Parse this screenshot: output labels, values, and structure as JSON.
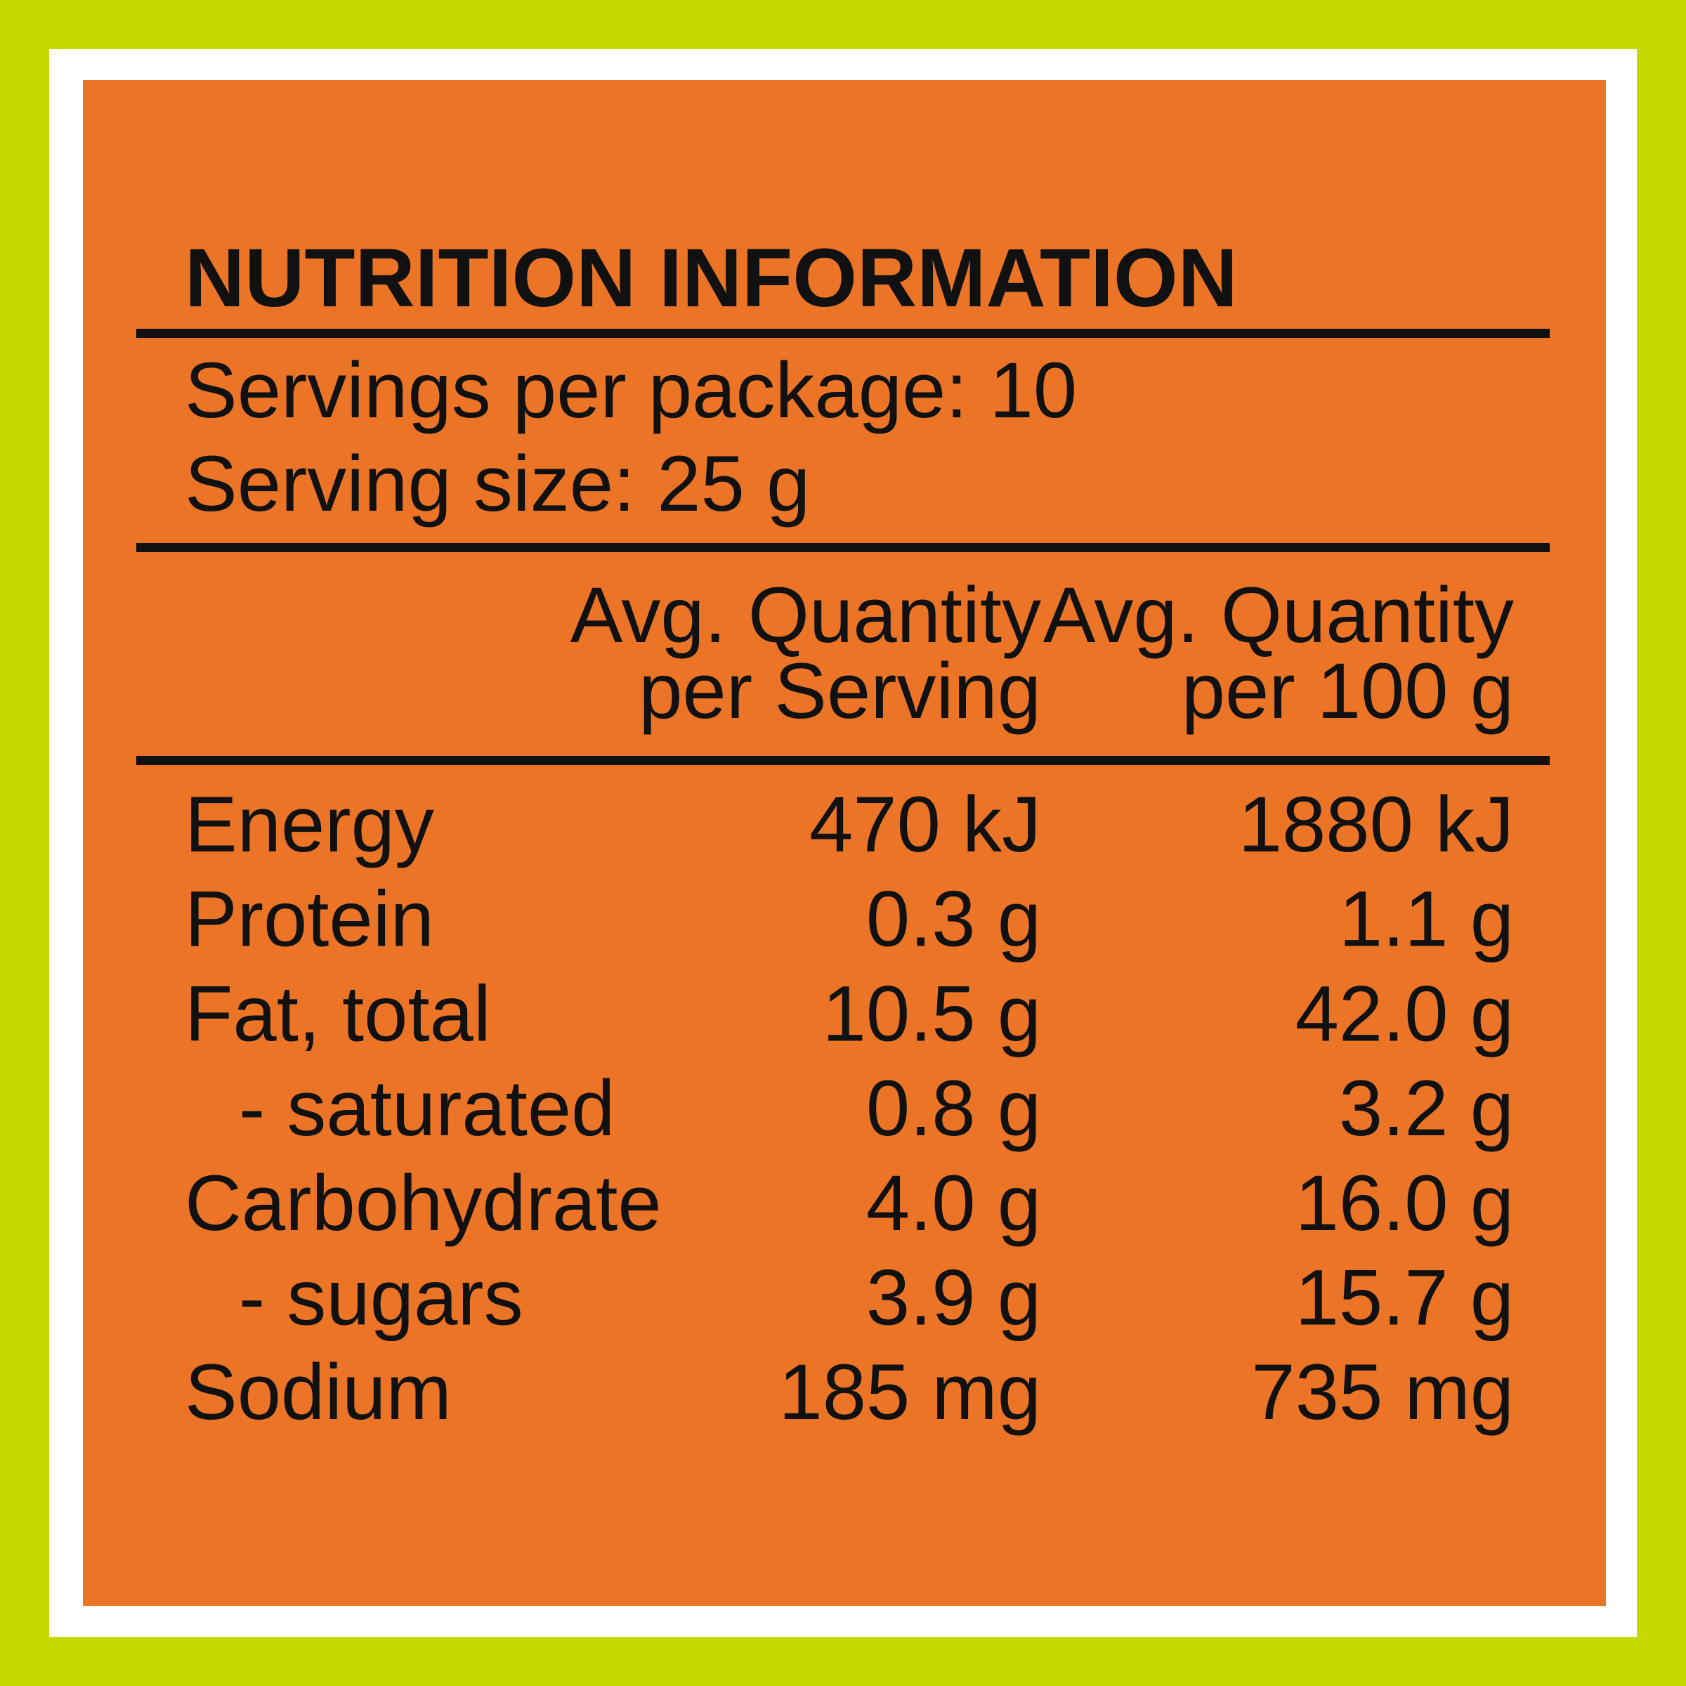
{
  "title": "NUTRITION INFORMATION",
  "servings": [
    "Servings per package: 10",
    "Serving size: 25 g"
  ],
  "columns": [
    {
      "lines": [
        "Avg. Quantity",
        "per Serving"
      ]
    },
    {
      "lines": [
        "Avg. Quantity",
        "per 100 g"
      ]
    }
  ],
  "rows": [
    {
      "name": "Energy",
      "indent": false,
      "values": [
        "470 kJ",
        "1880 kJ"
      ]
    },
    {
      "name": "Protein",
      "indent": false,
      "values": [
        "0.3 g",
        "1.1 g"
      ]
    },
    {
      "name": "Fat, total",
      "indent": false,
      "values": [
        "10.5 g",
        "42.0 g"
      ]
    },
    {
      "name": "- saturated",
      "indent": true,
      "values": [
        "0.8 g",
        "3.2 g"
      ]
    },
    {
      "name": "Carbohydrate",
      "indent": false,
      "values": [
        "4.0 g",
        "16.0 g"
      ]
    },
    {
      "name": "- sugars",
      "indent": true,
      "values": [
        "3.9 g",
        "15.7 g"
      ]
    },
    {
      "name": "Sodium",
      "indent": false,
      "values": [
        "185 mg",
        "735 mg"
      ]
    }
  ]
}
